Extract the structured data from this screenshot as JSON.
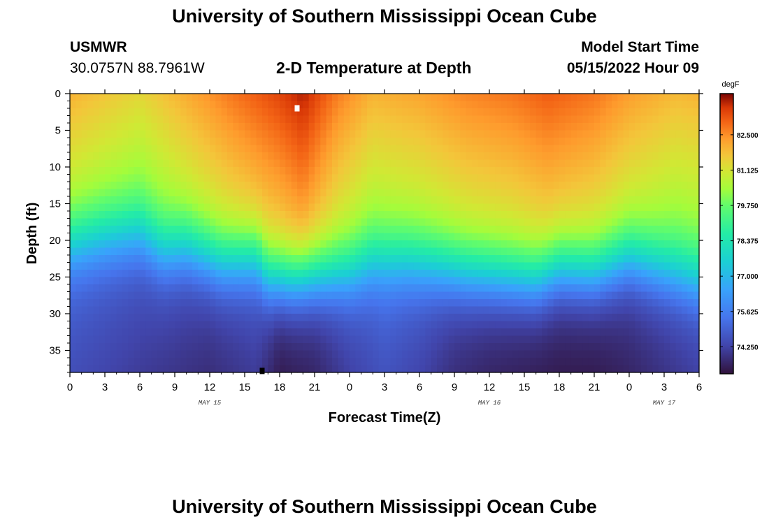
{
  "header": {
    "title": "University of Southern Mississippi Ocean Cube",
    "station": "USMWR",
    "coords": "30.0757N  88.7961W",
    "subtitle": "2-D Temperature at Depth",
    "model_start_label": "Model Start Time",
    "model_start_value": "05/15/2022 Hour 09"
  },
  "footer": {
    "title": "University of Southern Mississippi Ocean Cube"
  },
  "chart_data": {
    "type": "heatmap",
    "title": "2-D Temperature at Depth",
    "xlabel": "Forecast Time(Z)",
    "ylabel": "Depth (ft)",
    "x_tick_labels": [
      "0",
      "3",
      "6",
      "9",
      "12",
      "15",
      "18",
      "21",
      "0",
      "3",
      "6",
      "9",
      "12",
      "15",
      "18",
      "21",
      "0",
      "3",
      "6"
    ],
    "x_range_hours": [
      0,
      54
    ],
    "date_labels": [
      {
        "text": "MAY 15",
        "hour": 12
      },
      {
        "text": "MAY 16",
        "hour": 36
      },
      {
        "text": "MAY 17",
        "hour": 51
      }
    ],
    "y_ticks": [
      0,
      5,
      10,
      15,
      20,
      25,
      30,
      35
    ],
    "ylim": [
      0,
      38
    ],
    "colorbar": {
      "unit": "degF",
      "ticks": [
        "82.500",
        "81.125",
        "79.750",
        "78.375",
        "77.000",
        "75.625",
        "74.250"
      ],
      "range": [
        73.2,
        84.1
      ]
    },
    "surface_temp_by_hour": [
      [
        0,
        82.0
      ],
      [
        6,
        81.4
      ],
      [
        10,
        82.1
      ],
      [
        14,
        82.8
      ],
      [
        18,
        83.4
      ],
      [
        20,
        83.8
      ],
      [
        23,
        82.7
      ],
      [
        26,
        82.0
      ],
      [
        30,
        82.2
      ],
      [
        34,
        82.6
      ],
      [
        38,
        82.8
      ],
      [
        41,
        83.1
      ],
      [
        45,
        82.8
      ],
      [
        48,
        82.3
      ],
      [
        52,
        81.9
      ],
      [
        54,
        82.0
      ]
    ],
    "thermocline_depth_ft_by_hour": [
      [
        0,
        18.0
      ],
      [
        3,
        17.0
      ],
      [
        6,
        16.5
      ],
      [
        8,
        19.0
      ],
      [
        10,
        18.5
      ],
      [
        13,
        20.5
      ],
      [
        16,
        20.0
      ],
      [
        17,
        22.5
      ],
      [
        19,
        23.0
      ],
      [
        21,
        22.5
      ],
      [
        24,
        22.0
      ],
      [
        26,
        20.5
      ],
      [
        29,
        20.5
      ],
      [
        31,
        21.0
      ],
      [
        34,
        22.0
      ],
      [
        37,
        22.5
      ],
      [
        40,
        23.0
      ],
      [
        42,
        21.5
      ],
      [
        45,
        22.0
      ],
      [
        48,
        20.0
      ],
      [
        51,
        21.5
      ],
      [
        54,
        23.0
      ]
    ],
    "bottom_temp_by_hour": [
      [
        0,
        74.5
      ],
      [
        6,
        74.1
      ],
      [
        12,
        73.8
      ],
      [
        16,
        74.1
      ],
      [
        18,
        73.4
      ],
      [
        21,
        73.6
      ],
      [
        24,
        74.2
      ],
      [
        27,
        74.6
      ],
      [
        30,
        74.3
      ],
      [
        33,
        73.8
      ],
      [
        36,
        73.6
      ],
      [
        39,
        73.5
      ],
      [
        42,
        73.4
      ],
      [
        45,
        73.4
      ],
      [
        48,
        73.6
      ],
      [
        51,
        73.9
      ],
      [
        54,
        74.2
      ]
    ],
    "markers": [
      {
        "color": "#ffffff",
        "hour": 19.5,
        "depth_ft": 2.0
      },
      {
        "color": "#000000",
        "hour": 16.5,
        "depth_ft": 37.8
      }
    ]
  }
}
